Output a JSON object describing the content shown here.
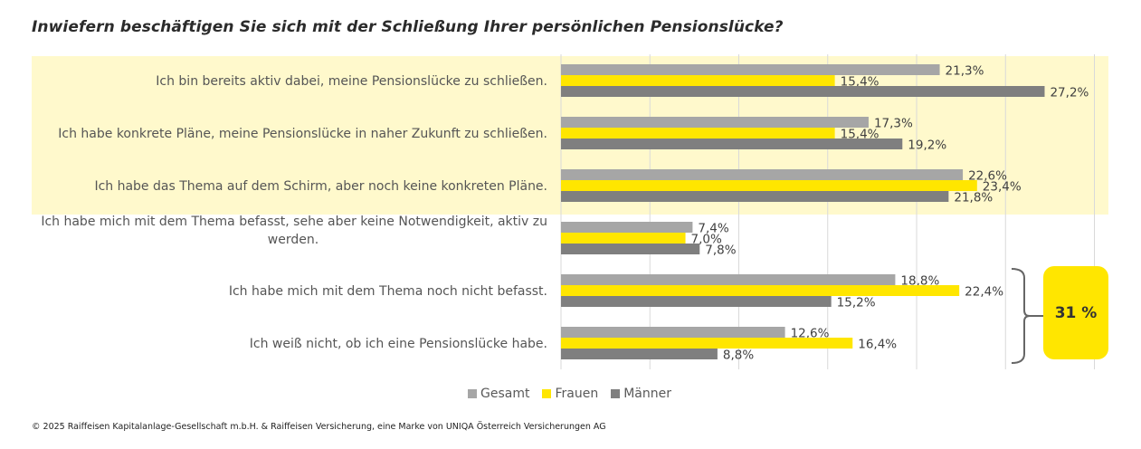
{
  "title": "Inwiefern beschäftigen Sie sich mit der Schließung Ihrer persönlichen Pensionslücke?",
  "chart_data": {
    "type": "bar",
    "orientation": "horizontal",
    "title": "Inwiefern beschäftigen Sie sich mit der Schließung Ihrer persönlichen Pensionslücke?",
    "xlabel": "",
    "ylabel": "",
    "xlim": [
      0,
      30
    ],
    "grid": true,
    "legend_position": "bottom-center",
    "categories": [
      [
        "Ich bin bereits aktiv dabei, meine Pensionslücke zu schließen."
      ],
      [
        "Ich habe konkrete Pläne, meine Pensionslücke in naher Zukunft zu schließen."
      ],
      [
        "Ich habe das Thema auf dem Schirm, aber noch keine konkreten Pläne."
      ],
      [
        "Ich habe mich mit dem Thema befasst, sehe aber keine Notwendigkeit, aktiv zu",
        "werden."
      ],
      [
        "Ich habe mich mit dem Thema noch nicht befasst."
      ],
      [
        "Ich weiß nicht, ob ich eine Pensionslücke habe."
      ]
    ],
    "series": [
      {
        "name": "Gesamt",
        "color": "#a6a6a6",
        "values": [
          21.3,
          17.3,
          22.6,
          7.4,
          18.8,
          12.6
        ],
        "labels": [
          "21,3%",
          "17,3%",
          "22,6%",
          "7,4%",
          "18,8%",
          "12,6%"
        ]
      },
      {
        "name": "Frauen",
        "color": "#ffe600",
        "values": [
          15.4,
          15.4,
          23.4,
          7.0,
          22.4,
          16.4
        ],
        "labels": [
          "15,4%",
          "15,4%",
          "23,4%",
          "7,0%",
          "22,4%",
          "16,4%"
        ]
      },
      {
        "name": "Männer",
        "color": "#7f7f7f",
        "values": [
          27.2,
          19.2,
          21.8,
          7.8,
          15.2,
          8.8
        ],
        "labels": [
          "27,2%",
          "19,2%",
          "21,8%",
          "7,8%",
          "15,2%",
          "8,8%"
        ]
      }
    ],
    "highlight_band": {
      "categories": [
        0,
        1,
        2
      ],
      "color": "#fff9cc"
    },
    "annotation": {
      "text": "31 %",
      "brace_categories": [
        4,
        5
      ],
      "color": "#ffe600"
    }
  },
  "legend": [
    {
      "label": "Gesamt",
      "color": "#a6a6a6"
    },
    {
      "label": "Frauen",
      "color": "#ffe600"
    },
    {
      "label": "Männer",
      "color": "#7f7f7f"
    }
  ],
  "footer": "© 2025 Raiffeisen Kapitalanlage-Gesellschaft m.b.H. & Raiffeisen Versicherung, eine Marke von UNIQA Österreich Versicherungen AG"
}
